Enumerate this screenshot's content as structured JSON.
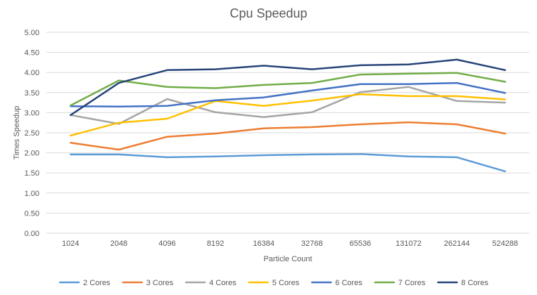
{
  "chart_data": {
    "type": "line",
    "title": "Cpu Speedup",
    "xlabel": "Particle Count",
    "ylabel": "Times Speedup",
    "ylim": [
      0,
      5
    ],
    "yticks": [
      0,
      0.5,
      1,
      1.5,
      2,
      2.5,
      3,
      3.5,
      4,
      4.5,
      5
    ],
    "ytick_labels": [
      "0.00",
      "0.50",
      "1.00",
      "1.50",
      "2.00",
      "2.50",
      "3.00",
      "3.50",
      "4.00",
      "4.50",
      "5.00"
    ],
    "grid": true,
    "legend_position": "bottom",
    "categories": [
      "1024",
      "2048",
      "4096",
      "8192",
      "16384",
      "32768",
      "65536",
      "131072",
      "262144",
      "524288"
    ],
    "series": [
      {
        "name": "2 Cores",
        "color": "#5B9BD5",
        "values": [
          1.96,
          1.96,
          1.89,
          1.91,
          1.94,
          1.96,
          1.97,
          1.91,
          1.89,
          1.54
        ]
      },
      {
        "name": "3 Cores",
        "color": "#ED7D31",
        "values": [
          2.25,
          2.08,
          2.4,
          2.48,
          2.61,
          2.64,
          2.71,
          2.76,
          2.71,
          2.48
        ]
      },
      {
        "name": "4 Cores",
        "color": "#A5A5A5",
        "values": [
          2.94,
          2.72,
          3.34,
          3.01,
          2.89,
          3.01,
          3.51,
          3.64,
          3.29,
          3.25
        ]
      },
      {
        "name": "5 Cores",
        "color": "#FFC000",
        "values": [
          2.43,
          2.75,
          2.85,
          3.29,
          3.17,
          3.3,
          3.46,
          3.41,
          3.41,
          3.33
        ]
      },
      {
        "name": "6 Cores",
        "color": "#4472C4",
        "values": [
          3.16,
          3.15,
          3.17,
          3.31,
          3.38,
          3.55,
          3.71,
          3.71,
          3.74,
          3.49
        ]
      },
      {
        "name": "7 Cores",
        "color": "#70AD47",
        "values": [
          3.18,
          3.8,
          3.64,
          3.61,
          3.69,
          3.74,
          3.95,
          3.97,
          3.99,
          3.77
        ]
      },
      {
        "name": "8 Cores",
        "color": "#264478",
        "values": [
          2.94,
          3.74,
          4.06,
          4.08,
          4.17,
          4.08,
          4.18,
          4.2,
          4.32,
          4.06
        ]
      }
    ]
  }
}
